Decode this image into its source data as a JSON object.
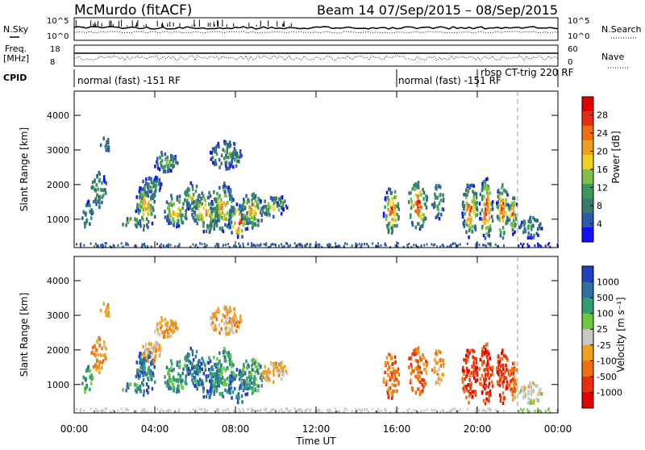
{
  "header": {
    "title": "McMurdo (fitACF)",
    "subtitle": "Beam 14 07/Sep/2015 – 08/Sep/2015"
  },
  "noise_panel": {
    "left_label": "N.Sky",
    "right_label": "N.Search",
    "left_ticks": [
      "10^5",
      "10^0"
    ],
    "right_ticks": [
      "10^5",
      "10^0"
    ]
  },
  "freq_panel": {
    "left_label_1": "Freq.",
    "left_label_2": "[MHz]",
    "right_label": "Nave",
    "left_ticks": [
      "18",
      "8"
    ],
    "right_ticks": [
      "60",
      "0"
    ]
  },
  "cpid_panel": {
    "label": "CPID",
    "programs": [
      "normal (fast) -151 RF",
      "normal (fast) -151 RF",
      "rbsp CT-trig 220 RF"
    ]
  },
  "chart_data": [
    {
      "type": "heatmap",
      "name": "Power",
      "ylabel": "Slant Range [km]",
      "xlabel": "Time UT",
      "x_ticks": [
        "00:00",
        "04:00",
        "08:00",
        "12:00",
        "16:00",
        "20:00",
        "00:00"
      ],
      "y_ticks": [
        "1000",
        "2000",
        "3000",
        "4000"
      ],
      "ylim": [
        180,
        4700
      ],
      "xlim_hours": [
        0,
        24
      ],
      "colorbar_label": "Power [dB]",
      "colorbar_ticks": [
        "4",
        "8",
        "12",
        "16",
        "20",
        "24",
        "28"
      ],
      "colors": [
        "#1010ff",
        "#2a5aa8",
        "#3a7a6a",
        "#3a9a5a",
        "#7fbf4a",
        "#f0d020",
        "#f0a020",
        "#f07010",
        "#e83010",
        "#e00000"
      ],
      "scale_range": [
        0,
        32
      ]
    },
    {
      "type": "heatmap",
      "name": "Velocity",
      "ylabel": "Slant Range [km]",
      "xlabel": "Time UT",
      "x_ticks": [
        "00:00",
        "04:00",
        "08:00",
        "12:00",
        "16:00",
        "20:00",
        "00:00"
      ],
      "y_ticks": [
        "1000",
        "2000",
        "3000",
        "4000"
      ],
      "ylim": [
        180,
        4700
      ],
      "xlim_hours": [
        0,
        24
      ],
      "colorbar_label": "Velocity [m s⁻¹]",
      "colorbar_ticks": [
        "1000",
        "500",
        "100",
        "25",
        "-25",
        "-100",
        "-500",
        "-1000"
      ],
      "colors": [
        "#2040c0",
        "#3070a0",
        "#30a070",
        "#70c840",
        "#c8c8c8",
        "#f0a020",
        "#f07010",
        "#e83010",
        "#e00000"
      ]
    }
  ],
  "x_axis_title": "Time UT"
}
